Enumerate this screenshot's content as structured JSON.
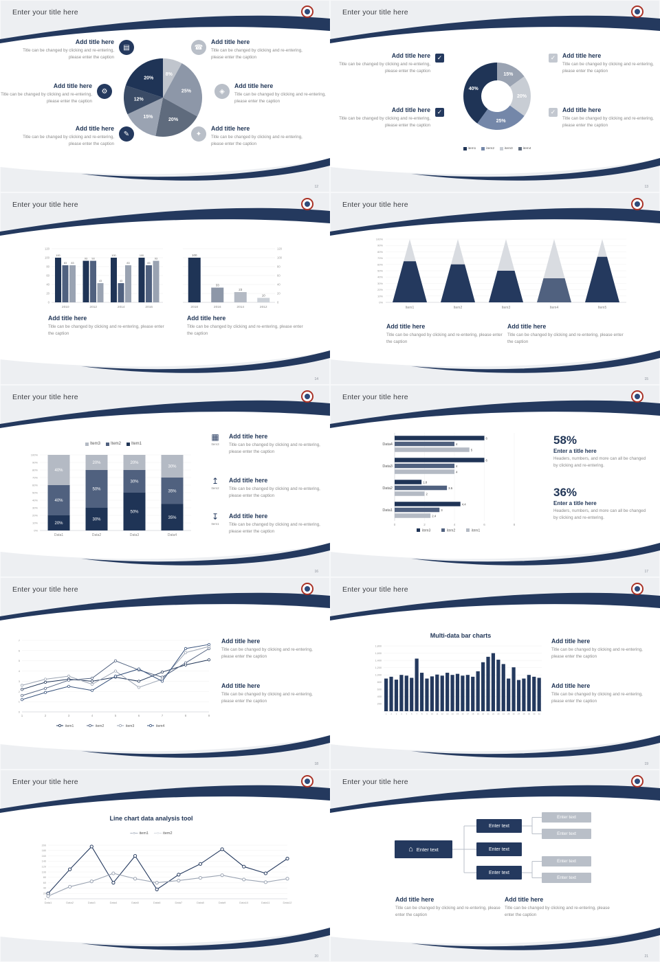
{
  "common": {
    "slide_title": "Enter your title here",
    "add_title": "Add title here",
    "caption": "Title can be changed by clicking and re-entering, please enter the caption"
  },
  "icons": {
    "monitor": "▤",
    "phone": "☎",
    "car": "⚙",
    "lock": "◈",
    "book": "✎",
    "key": "✦",
    "check": "✓",
    "home": "⌂",
    "chart": "▦",
    "upload": "↥",
    "download": "↧"
  },
  "slides": {
    "s12": {
      "page": "12",
      "chart_data": {
        "type": "pie",
        "segments": [
          {
            "label": "8%",
            "value": 8,
            "color": "#c0c5cd"
          },
          {
            "label": "25%",
            "value": 25,
            "color": "#8d97a8"
          },
          {
            "label": "20%",
            "value": 20,
            "color": "#5f6b7d"
          },
          {
            "label": "15%",
            "value": 15,
            "color": "#9aa3b2"
          },
          {
            "label": "12%",
            "value": 12,
            "color": "#3a4b66"
          },
          {
            "label": "20%",
            "value": 20,
            "color": "#1f3456"
          }
        ]
      }
    },
    "s13": {
      "page": "13",
      "chart_data": {
        "type": "donut",
        "segments": [
          {
            "label": "15%",
            "value": 15,
            "color": "#9aa3b2"
          },
          {
            "label": "20%",
            "value": 20,
            "color": "#c8cdd4"
          },
          {
            "label": "25%",
            "value": 25,
            "color": "#7487a9"
          },
          {
            "label": "40%",
            "value": 40,
            "color": "#1f3456"
          }
        ],
        "legend": [
          {
            "name": "item1",
            "color": "#1f3456"
          },
          {
            "name": "item2",
            "color": "#7487a9"
          },
          {
            "name": "item3",
            "color": "#c8cdd4"
          },
          {
            "name": "item4",
            "color": "#5f6b7d"
          }
        ]
      }
    },
    "s14": {
      "page": "14",
      "chart_data": [
        {
          "type": "bar",
          "categories": [
            "2010",
            "2012",
            "2014",
            "2016"
          ],
          "series": [
            {
              "name": "series1",
              "color": "#1f3456",
              "values": [
                100,
                93,
                100,
                100
              ]
            },
            {
              "name": "series2",
              "color": "#50617f",
              "values": [
                83,
                93,
                43,
                83
              ]
            },
            {
              "name": "series3",
              "color": "#9aa3b2",
              "values": [
                83,
                43,
                83,
                93
              ]
            }
          ],
          "ylim": [
            0,
            120
          ],
          "ystep": 20
        },
        {
          "type": "bar",
          "categories": [
            "2018",
            "2016",
            "2014",
            "2012"
          ],
          "values": [
            100,
            33,
            23,
            10
          ],
          "colors": [
            "#1f3456",
            "#8d97a8",
            "#b4bac4",
            "#ccd1d8"
          ],
          "ylim": [
            0,
            120
          ],
          "ystep": 20
        }
      ]
    },
    "s15": {
      "page": "15",
      "chart_data": {
        "type": "cone",
        "categories": [
          "Item1",
          "Item2",
          "Item3",
          "Item4",
          "Item5"
        ],
        "values": [
          65,
          60,
          50,
          38,
          72
        ],
        "ylim": [
          0,
          100
        ],
        "ystep": 10,
        "cone_color": "#d9dce1",
        "fill_colors": [
          "#24395e",
          "#24395e",
          "#24395e",
          "#50617f",
          "#24395e"
        ]
      }
    },
    "s16": {
      "page": "16",
      "chart_data": {
        "type": "stacked-bar",
        "categories": [
          "Data1",
          "Data2",
          "Data3",
          "Data4"
        ],
        "series": [
          {
            "name": "Item1",
            "color": "#1f3456",
            "values": [
              20,
              30,
              50,
              35
            ]
          },
          {
            "name": "Item2",
            "color": "#50617f",
            "values": [
              40,
              50,
              30,
              35
            ]
          },
          {
            "name": "Item3",
            "color": "#b4bac4",
            "values": [
              40,
              20,
              20,
              30
            ]
          }
        ],
        "legend": [
          {
            "name": "Item3",
            "color": "#b4bac4"
          },
          {
            "name": "Item2",
            "color": "#50617f"
          },
          {
            "name": "Item1",
            "color": "#1f3456"
          }
        ],
        "ylim": [
          0,
          100
        ],
        "ystep": 10
      },
      "icon_items": [
        "Item3",
        "Item2",
        "Item1"
      ]
    },
    "s17": {
      "page": "17",
      "chart_data": {
        "type": "hbar",
        "categories": [
          "Data4",
          "Data3",
          "Data2",
          "Data1"
        ],
        "series": [
          {
            "name": "item3",
            "color": "#1f3456",
            "values": [
              6,
              6,
              1.8,
              4.4
            ]
          },
          {
            "name": "item2",
            "color": "#50617f",
            "values": [
              4,
              4,
              3.5,
              3
            ]
          },
          {
            "name": "item1",
            "color": "#b4bac4",
            "values": [
              5,
              4,
              2,
              2.4
            ]
          }
        ],
        "legend": [
          {
            "name": "item3",
            "color": "#1f3456"
          },
          {
            "name": "item2",
            "color": "#50617f"
          },
          {
            "name": "item1",
            "color": "#b4bac4"
          }
        ],
        "xlim": [
          0,
          8
        ],
        "xstep": 2
      },
      "stats": [
        {
          "value": "58%",
          "title": "Enter a title here",
          "caption": "Headers, numbers, and more can all be changed by clicking and re-entering."
        },
        {
          "value": "36%",
          "title": "Enter a title here",
          "caption": "Headers, numbers, and more can all be changed by clicking and re-entering."
        }
      ]
    },
    "s18": {
      "page": "18",
      "chart_data": {
        "type": "line",
        "x": [
          1,
          2,
          3,
          4,
          5,
          6,
          7,
          8,
          9
        ],
        "ylim": [
          0,
          7
        ],
        "ystep": 1,
        "series": [
          {
            "name": "item1",
            "color": "#1f3456",
            "values": [
              2.2,
              2.9,
              3.2,
              3.0,
              3.4,
              3.0,
              3.9,
              4.6,
              5.1
            ]
          },
          {
            "name": "item2",
            "color": "#50617f",
            "values": [
              1.6,
              2.3,
              3.1,
              3.3,
              5.0,
              4.1,
              3.4,
              4.8,
              6.2
            ]
          },
          {
            "name": "item3",
            "color": "#9aa3b2",
            "values": [
              2.6,
              3.2,
              3.5,
              2.7,
              4.0,
              2.4,
              3.2,
              5.8,
              6.4
            ]
          },
          {
            "name": "item4",
            "color": "#35507a",
            "values": [
              1.2,
              1.9,
              2.5,
              2.1,
              3.5,
              4.2,
              3.0,
              6.2,
              6.6
            ]
          }
        ]
      }
    },
    "s19": {
      "page": "19",
      "chart_data": {
        "type": "bar",
        "title": "Multi-data bar charts",
        "categories": [
          "1",
          "2",
          "3",
          "4",
          "5",
          "6",
          "7",
          "8",
          "9",
          "10",
          "11",
          "12",
          "13",
          "14",
          "15",
          "16",
          "17",
          "18",
          "19",
          "20",
          "21",
          "22",
          "23",
          "24",
          "25",
          "26",
          "27",
          "28",
          "29",
          "30",
          "31"
        ],
        "values": [
          900,
          950,
          870,
          1000,
          980,
          920,
          1450,
          1060,
          900,
          960,
          1010,
          980,
          1060,
          1000,
          1030,
          980,
          1000,
          950,
          1100,
          1350,
          1500,
          1600,
          1420,
          1300,
          900,
          1210,
          860,
          900,
          1000,
          950,
          920
        ],
        "bar_color": "#24395e",
        "ylim": [
          0,
          1800
        ],
        "ystep": 200
      }
    },
    "s20": {
      "page": "20",
      "chart_data": {
        "type": "line",
        "title": "Line chart data analysis tool",
        "categories": [
          "Data1",
          "Data2",
          "Data3",
          "Data4",
          "Data5",
          "Data6",
          "Data7",
          "Data8",
          "Data9",
          "Data10",
          "Data11",
          "Data12"
        ],
        "ylim": [
          0,
          200
        ],
        "ystep": 20,
        "series": [
          {
            "name": "item1",
            "color": "#24395e",
            "values": [
              20,
              110,
              195,
              60,
              160,
              35,
              90,
              130,
              185,
              120,
              95,
              150
            ]
          },
          {
            "name": "item2",
            "color": "#9aa3b2",
            "values": [
              10,
              45,
              65,
              95,
              75,
              60,
              68,
              78,
              88,
              72,
              62,
              75
            ]
          }
        ]
      }
    },
    "s21": {
      "page": "21",
      "box_label": "Enter text"
    }
  }
}
